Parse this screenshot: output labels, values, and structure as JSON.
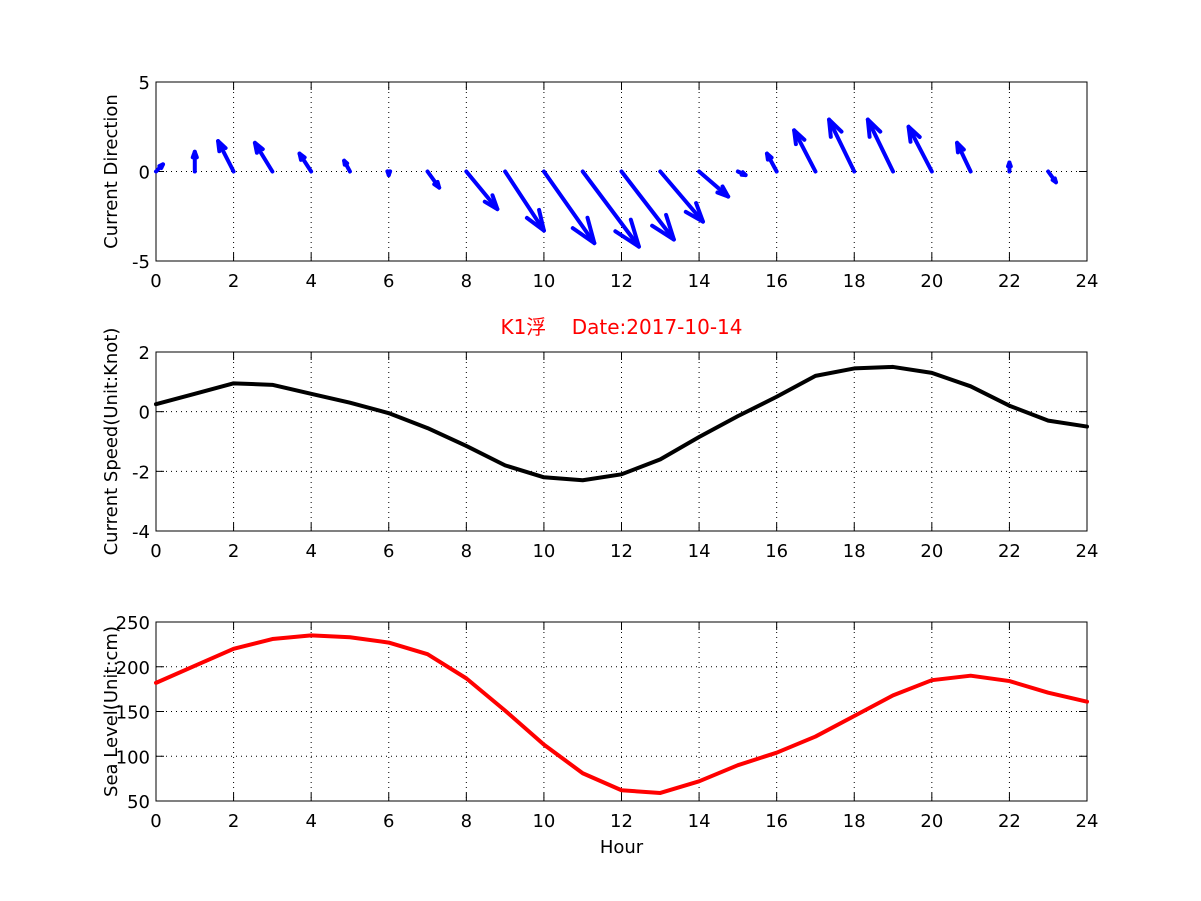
{
  "chart_data": [
    {
      "type": "quiver",
      "ylabel": "Current Direction",
      "xlim": [
        0,
        24
      ],
      "ylim": [
        -5,
        5
      ],
      "xticks": [
        "0",
        "2",
        "4",
        "6",
        "8",
        "10",
        "12",
        "14",
        "16",
        "18",
        "20",
        "22",
        "24"
      ],
      "yticks": [
        "-5",
        "0",
        "5"
      ],
      "grid": true,
      "color": "#0000ff",
      "arrows": [
        {
          "x": 0,
          "u": 0.18,
          "v": 0.4
        },
        {
          "x": 1,
          "u": 0.0,
          "v": 1.1
        },
        {
          "x": 2,
          "u": -0.4,
          "v": 1.7
        },
        {
          "x": 3,
          "u": -0.45,
          "v": 1.6
        },
        {
          "x": 4,
          "u": -0.3,
          "v": 1.0
        },
        {
          "x": 5,
          "u": -0.15,
          "v": 0.6
        },
        {
          "x": 6,
          "u": 0.0,
          "v": -0.2
        },
        {
          "x": 7,
          "u": 0.3,
          "v": -0.9
        },
        {
          "x": 8,
          "u": 0.8,
          "v": -2.1
        },
        {
          "x": 9,
          "u": 1.0,
          "v": -3.3
        },
        {
          "x": 10,
          "u": 1.3,
          "v": -4.0
        },
        {
          "x": 11,
          "u": 1.45,
          "v": -4.2
        },
        {
          "x": 12,
          "u": 1.35,
          "v": -3.8
        },
        {
          "x": 13,
          "u": 1.1,
          "v": -2.8
        },
        {
          "x": 14,
          "u": 0.75,
          "v": -1.4
        },
        {
          "x": 15,
          "u": 0.2,
          "v": -0.2
        },
        {
          "x": 16,
          "u": -0.25,
          "v": 1.0
        },
        {
          "x": 17,
          "u": -0.55,
          "v": 2.3
        },
        {
          "x": 18,
          "u": -0.65,
          "v": 2.9
        },
        {
          "x": 19,
          "u": -0.65,
          "v": 2.9
        },
        {
          "x": 20,
          "u": -0.6,
          "v": 2.5
        },
        {
          "x": 21,
          "u": -0.35,
          "v": 1.6
        },
        {
          "x": 22,
          "u": 0.0,
          "v": 0.5
        },
        {
          "x": 23,
          "u": 0.2,
          "v": -0.6
        }
      ]
    },
    {
      "type": "line",
      "title": "K1浮    Date:2017-10-14",
      "ylabel": "Current Speed(Unit:Knot)",
      "xlim": [
        0,
        24
      ],
      "ylim": [
        -4,
        2
      ],
      "xticks": [
        "0",
        "2",
        "4",
        "6",
        "8",
        "10",
        "12",
        "14",
        "16",
        "18",
        "20",
        "22",
        "24"
      ],
      "yticks": [
        "-4",
        "-2",
        "0",
        "2"
      ],
      "grid": true,
      "color": "#000000",
      "x": [
        0,
        1,
        2,
        3,
        4,
        5,
        6,
        7,
        8,
        9,
        10,
        11,
        12,
        13,
        14,
        15,
        16,
        17,
        18,
        19,
        20,
        21,
        22,
        23,
        24
      ],
      "y": [
        0.25,
        0.6,
        0.95,
        0.9,
        0.6,
        0.3,
        -0.05,
        -0.55,
        -1.15,
        -1.8,
        -2.2,
        -2.3,
        -2.1,
        -1.6,
        -0.85,
        -0.15,
        0.5,
        1.2,
        1.45,
        1.5,
        1.3,
        0.85,
        0.2,
        -0.3,
        -0.5
      ]
    },
    {
      "type": "line",
      "ylabel": "Sea Level(Unit:cm)",
      "xlabel": "Hour",
      "xlim": [
        0,
        24
      ],
      "ylim": [
        50,
        250
      ],
      "xticks": [
        "0",
        "2",
        "4",
        "6",
        "8",
        "10",
        "12",
        "14",
        "16",
        "18",
        "20",
        "22",
        "24"
      ],
      "yticks": [
        "50",
        "100",
        "150",
        "200",
        "250"
      ],
      "grid": true,
      "color": "#ff0000",
      "x": [
        0,
        1,
        2,
        3,
        4,
        5,
        6,
        7,
        8,
        9,
        10,
        11,
        12,
        13,
        14,
        15,
        16,
        17,
        18,
        19,
        20,
        21,
        22,
        23,
        24
      ],
      "y": [
        182,
        201,
        220,
        231,
        235,
        233,
        227,
        214,
        187,
        151,
        113,
        81,
        62,
        59,
        72,
        90,
        104,
        122,
        145,
        168,
        185,
        190,
        184,
        171,
        161
      ]
    }
  ]
}
